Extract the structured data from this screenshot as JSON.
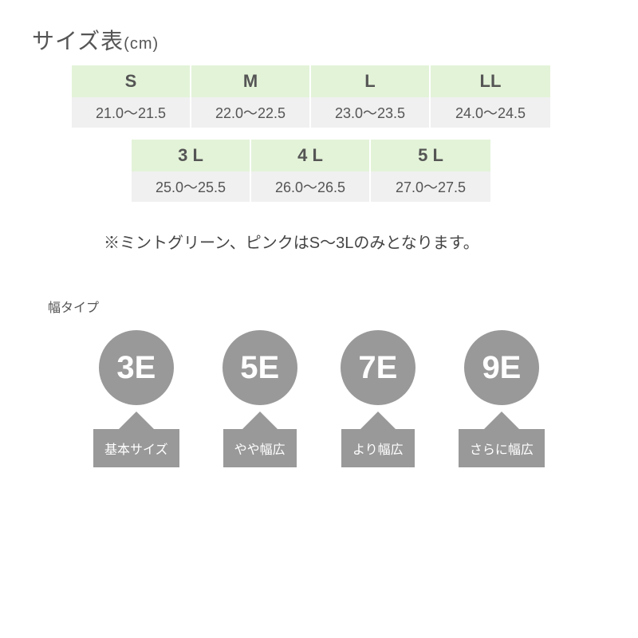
{
  "title": {
    "main": "サイズ表",
    "unit": "(cm)"
  },
  "sizeTable": {
    "row1": [
      {
        "label": "S",
        "range": "21.0～21.5"
      },
      {
        "label": "M",
        "range": "22.0～22.5"
      },
      {
        "label": "L",
        "range": "23.0～23.5"
      },
      {
        "label": "LL",
        "range": "24.0～24.5"
      }
    ],
    "row2": [
      {
        "label": "3 L",
        "range": "25.0～25.5"
      },
      {
        "label": "4 L",
        "range": "26.0～26.5"
      },
      {
        "label": "5 L",
        "range": "27.0～27.5"
      }
    ]
  },
  "note": "※ミントグリーン、ピンクはS～3Lのみとなります。",
  "widthSection": {
    "title": "幅タイプ",
    "types": [
      {
        "code": "3E",
        "desc": "基本サイズ",
        "color": "#999999"
      },
      {
        "code": "5E",
        "desc": "やや幅広",
        "color": "#999999"
      },
      {
        "code": "7E",
        "desc": "より幅広",
        "color": "#999999"
      },
      {
        "code": "9E",
        "desc": "さらに幅広",
        "color": "#999999"
      }
    ]
  },
  "colors": {
    "sizeLabelBg": "#e3f3d8",
    "sizeRangeBg": "#f0f0f0",
    "widthCircleBg": "#999999",
    "textMain": "#555555"
  }
}
